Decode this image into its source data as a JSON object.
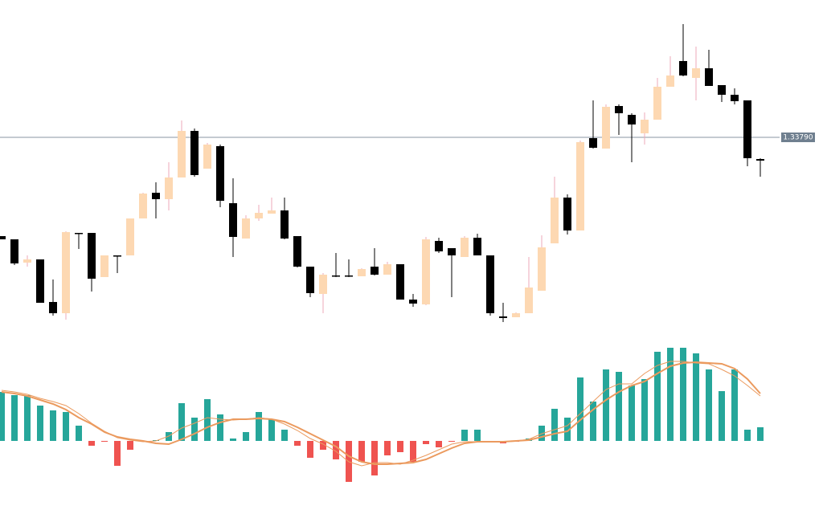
{
  "chart_data": [
    {
      "type": "candlestick",
      "open": [
        1.33544,
        1.33536,
        1.33478,
        1.33486,
        1.3338,
        1.33352,
        1.33552,
        1.33552,
        1.33442,
        1.33496,
        1.33496,
        1.33588,
        1.33652,
        1.33636,
        1.3369,
        1.33806,
        1.33712,
        1.33768,
        1.33626,
        1.33538,
        1.33588,
        1.336,
        1.33608,
        1.33544,
        1.33468,
        1.334,
        1.33446,
        1.33446,
        1.33444,
        1.33468,
        1.33448,
        1.33474,
        1.33386,
        1.33374,
        1.33532,
        1.33514,
        1.33492,
        1.3354,
        1.33496,
        1.33344,
        1.33342,
        1.33352,
        1.33408,
        1.33526,
        1.3364,
        1.33558,
        1.33788,
        1.33762,
        1.33868,
        1.33846,
        1.338,
        1.33834,
        1.33916,
        1.3398,
        1.33938,
        1.33962,
        1.3392,
        1.33896,
        1.33882,
        1.33736
      ],
      "high": [
        1.33544,
        1.33536,
        1.33496,
        1.33486,
        1.33436,
        1.33556,
        1.33552,
        1.33552,
        1.33496,
        1.33496,
        1.33588,
        1.33652,
        1.33678,
        1.33728,
        1.33832,
        1.33812,
        1.33776,
        1.33772,
        1.33688,
        1.33596,
        1.33622,
        1.3364,
        1.3364,
        1.33544,
        1.33468,
        1.33452,
        1.33502,
        1.33486,
        1.33464,
        1.33514,
        1.3348,
        1.33474,
        1.334,
        1.33542,
        1.3354,
        1.33514,
        1.33544,
        1.3355,
        1.33496,
        1.33378,
        1.33354,
        1.33492,
        1.33546,
        1.33692,
        1.33648,
        1.33782,
        1.33882,
        1.33872,
        1.33872,
        1.3385,
        1.33852,
        1.33938,
        1.33992,
        1.34072,
        1.34016,
        1.34008,
        1.3392,
        1.33912,
        1.33882,
        1.33738
      ],
      "low": [
        1.33536,
        1.33472,
        1.33468,
        1.33378,
        1.33346,
        1.33336,
        1.33512,
        1.33406,
        1.33442,
        1.33452,
        1.33496,
        1.33588,
        1.33588,
        1.33608,
        1.3369,
        1.33692,
        1.33712,
        1.33616,
        1.33492,
        1.33538,
        1.33582,
        1.336,
        1.33536,
        1.33466,
        1.33392,
        1.33352,
        1.33442,
        1.33442,
        1.33444,
        1.33446,
        1.33448,
        1.33386,
        1.33368,
        1.33372,
        1.33502,
        1.33392,
        1.33492,
        1.33496,
        1.33346,
        1.3333,
        1.33342,
        1.33352,
        1.33408,
        1.33526,
        1.33548,
        1.33558,
        1.33762,
        1.33762,
        1.33796,
        1.33728,
        1.33772,
        1.33834,
        1.33916,
        1.33942,
        1.33882,
        1.33918,
        1.33878,
        1.33872,
        1.33718,
        1.33692
      ],
      "close": [
        1.33536,
        1.33476,
        1.33486,
        1.33378,
        1.33352,
        1.33554,
        1.33552,
        1.33438,
        1.33496,
        1.33496,
        1.33588,
        1.3365,
        1.33636,
        1.3369,
        1.33806,
        1.33696,
        1.33772,
        1.33632,
        1.33542,
        1.33588,
        1.33602,
        1.33608,
        1.33538,
        1.33468,
        1.33402,
        1.33448,
        1.33446,
        1.33446,
        1.33462,
        1.33448,
        1.33474,
        1.33386,
        1.33376,
        1.33536,
        1.33506,
        1.33496,
        1.3354,
        1.33496,
        1.33352,
        1.3334,
        1.33352,
        1.33416,
        1.33516,
        1.3364,
        1.33558,
        1.33778,
        1.33764,
        1.33866,
        1.3385,
        1.33822,
        1.33834,
        1.33916,
        1.33944,
        1.33944,
        1.33962,
        1.33918,
        1.33896,
        1.3388,
        1.33738,
        1.33732
      ],
      "up_color": "#fdd8b2",
      "up_wick_color": "#eeaab8",
      "down_color": "#000000",
      "ylim": [
        1.3331,
        1.3413
      ],
      "price_line": {
        "value": 1.3379,
        "label": "1.33790"
      }
    },
    {
      "type": "macd",
      "values": [
        0.00061,
        0.00057,
        0.00057,
        0.00044,
        0.00038,
        0.00036,
        0.00019,
        -6e-05,
        -1e-05,
        -0.00031,
        -0.00011,
        -1e-05,
        1e-05,
        0.00011,
        0.00047,
        0.00029,
        0.00052,
        0.00033,
        3e-05,
        0.00011,
        0.00036,
        0.00027,
        0.00014,
        -6e-05,
        -0.00021,
        -0.00011,
        -0.00023,
        -0.00051,
        -0.00026,
        -0.00043,
        -0.00018,
        -0.00014,
        -0.00026,
        -4e-05,
        -8e-05,
        -1e-05,
        0.00014,
        0.00014,
        -1e-05,
        -3e-05,
        -1e-05,
        3e-05,
        0.00019,
        0.0004,
        0.00029,
        0.00079,
        0.00049,
        0.00089,
        0.00086,
        0.00069,
        0.00077,
        0.00111,
        0.00116,
        0.00116,
        0.00109,
        0.00089,
        0.00062,
        0.00089,
        0.00014,
        0.00017
      ],
      "positive_color": "#26a69a",
      "negative_color": "#ef5350",
      "ylim": [
        -0.0006,
        0.0012
      ],
      "series": [
        {
          "color": "#eb9a5e",
          "width": 2,
          "values": [
            0.00061,
            0.00059,
            0.00056,
            0.00051,
            0.00046,
            0.00039,
            0.00029,
            0.00021,
            0.00011,
            5e-05,
            2e-05,
            0,
            -3e-05,
            -4e-05,
            2e-05,
            9e-05,
            0.00017,
            0.00023,
            0.00027,
            0.00027,
            0.00028,
            0.00027,
            0.00024,
            0.00017,
            9e-05,
            1e-05,
            -7e-05,
            -0.00019,
            -0.00026,
            -0.00029,
            -0.00029,
            -0.00028,
            -0.00027,
            -0.00023,
            -0.00016,
            -9e-05,
            -3e-05,
            -1e-05,
            -1e-05,
            -1e-05,
            0,
            1e-05,
            5e-05,
            9e-05,
            0.00012,
            0.00026,
            0.00039,
            0.00051,
            0.00061,
            0.00069,
            0.00074,
            0.00084,
            0.00093,
            0.00097,
            0.00098,
            0.00097,
            0.00096,
            0.0009,
            0.00077,
            0.00059
          ]
        },
        {
          "color": "#eb9a5e",
          "width": 1,
          "values": [
            0.00063,
            0.00061,
            0.00058,
            0.00053,
            0.00049,
            0.00044,
            0.00034,
            0.00022,
            0.00012,
            4e-05,
            1e-05,
            -1e-05,
            0,
            6e-05,
            0.00016,
            0.00022,
            0.00029,
            0.00027,
            0.00026,
            0.00027,
            0.00029,
            0.00027,
            0.00021,
            0.00013,
            3e-05,
            -4e-05,
            -0.00013,
            -0.00026,
            -0.00031,
            -0.00027,
            -0.00027,
            -0.00029,
            -0.00024,
            -0.00018,
            -0.00011,
            -4e-05,
            -1e-05,
            -1e-05,
            -1e-05,
            -1e-05,
            0,
            2e-05,
            9e-05,
            0.00014,
            0.00019,
            0.00034,
            0.00049,
            0.00064,
            0.00071,
            0.00071,
            0.00084,
            0.00094,
            0.00099,
            0.00099,
            0.00097,
            0.00096,
            0.00089,
            0.00081,
            0.00069,
            0.00056
          ]
        }
      ]
    }
  ]
}
